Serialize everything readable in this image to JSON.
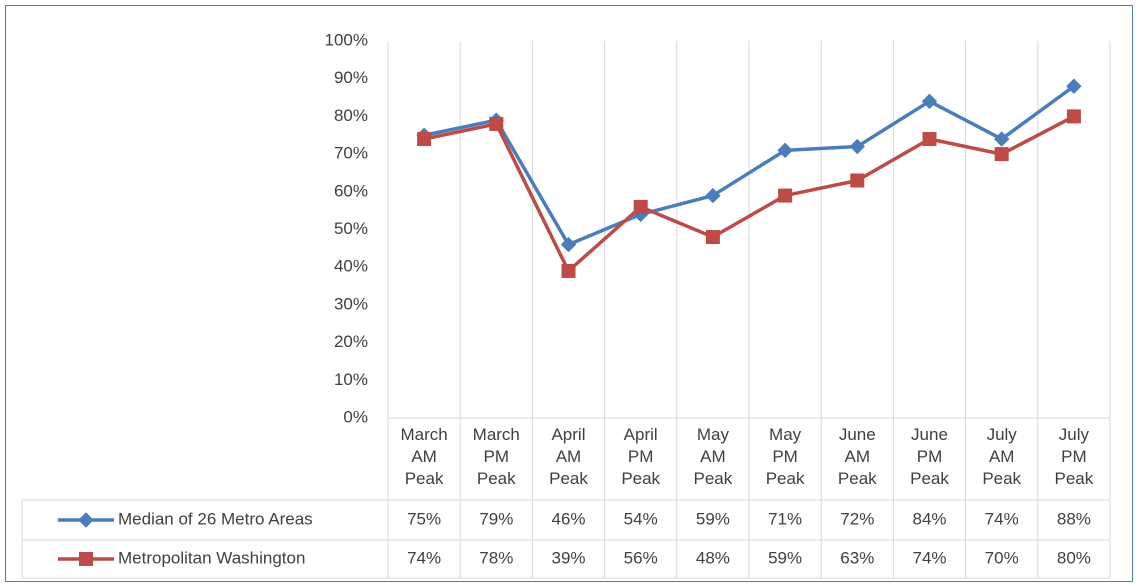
{
  "chart_data": {
    "type": "line",
    "categories": [
      "March AM Peak",
      "March PM Peak",
      "April AM Peak",
      "April PM Peak",
      "May AM Peak",
      "May PM Peak",
      "June AM Peak",
      "June PM Peak",
      "July AM Peak",
      "July PM Peak"
    ],
    "series": [
      {
        "name": "Median of 26 Metro Areas",
        "color": "#4a7ebb",
        "marker": "diamond",
        "values": [
          75,
          79,
          46,
          54,
          59,
          71,
          72,
          84,
          74,
          88
        ],
        "value_labels": [
          "75%",
          "79%",
          "46%",
          "54%",
          "59%",
          "71%",
          "72%",
          "84%",
          "74%",
          "88%"
        ]
      },
      {
        "name": "Metropolitan Washington",
        "color": "#be4b48",
        "marker": "square",
        "values": [
          74,
          78,
          39,
          56,
          48,
          59,
          63,
          74,
          70,
          80
        ],
        "value_labels": [
          "74%",
          "78%",
          "39%",
          "56%",
          "48%",
          "59%",
          "63%",
          "74%",
          "70%",
          "80%"
        ]
      }
    ],
    "ylim": [
      0,
      100
    ],
    "yticks": [
      {
        "value": 0,
        "label": "0%"
      },
      {
        "value": 10,
        "label": "10%"
      },
      {
        "value": 20,
        "label": "20%"
      },
      {
        "value": 30,
        "label": "30%"
      },
      {
        "value": 40,
        "label": "40%"
      },
      {
        "value": 50,
        "label": "50%"
      },
      {
        "value": 60,
        "label": "60%"
      },
      {
        "value": 70,
        "label": "70%"
      },
      {
        "value": 80,
        "label": "80%"
      },
      {
        "value": 90,
        "label": "90%"
      },
      {
        "value": 100,
        "label": "100%"
      }
    ],
    "data_table": true
  }
}
